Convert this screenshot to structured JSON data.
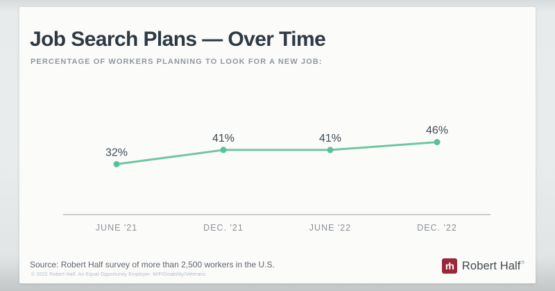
{
  "page": {
    "title": "Job Search Plans — Over Time",
    "subtitle": "PERCENTAGE OF WORKERS PLANNING TO LOOK FOR A NEW JOB:"
  },
  "chart_data": {
    "type": "line",
    "title": "Job Search Plans — Over Time",
    "subtitle": "Percentage of workers planning to look for a new job",
    "categories": [
      "JUNE '21",
      "DEC. '21",
      "JUNE '22",
      "DEC. '22"
    ],
    "series": [
      {
        "name": "Workers planning to look for a new job (%)",
        "values": [
          32,
          41,
          41,
          46
        ]
      }
    ],
    "value_label_suffix": "%",
    "ylim": [
      0,
      60
    ],
    "grid": false,
    "legend_position": "none",
    "line_color": "#6fc7a2",
    "point_color": "#5cc09a"
  },
  "footer": {
    "source": "Source: Robert Half survey of more than 2,500 workers in the U.S.",
    "copyright": "© 2022 Robert Half. An Equal Opportunity Employer. M/F/Disability/Veterans."
  },
  "brand": {
    "logo_monogram": "rh",
    "logo_text": "Robert Half",
    "registered_mark": "®",
    "logo_color": "#98273a"
  }
}
